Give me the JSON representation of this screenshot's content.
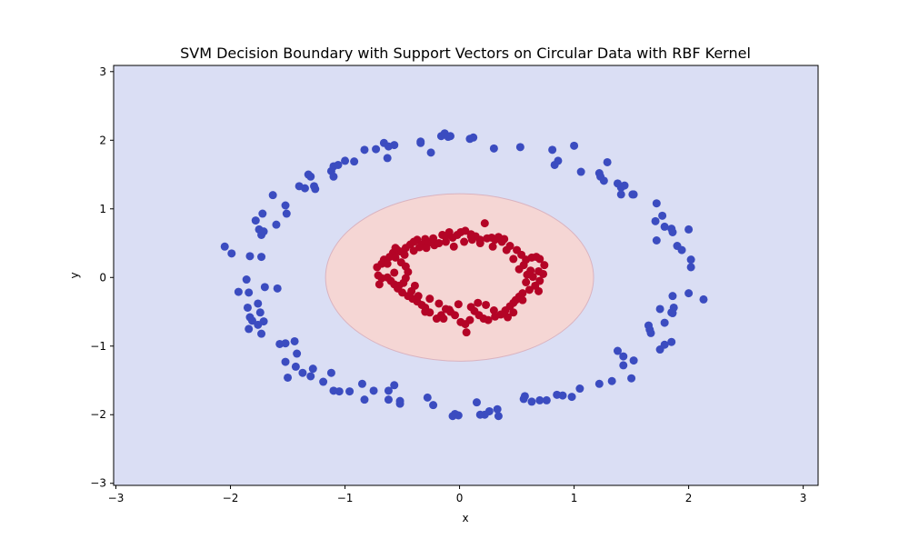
{
  "chart_data": {
    "type": "scatter",
    "title": "SVM Decision Boundary with Support Vectors on Circular Data with RBF Kernel",
    "xlabel": "x",
    "ylabel": "y",
    "xlim": [
      -3.02,
      3.13
    ],
    "ylim": [
      -3.03,
      3.09
    ],
    "xticks": [
      -3,
      -2,
      -1,
      0,
      1,
      2,
      3
    ],
    "xtick_labels": [
      "−3",
      "−2",
      "−1",
      "0",
      "1",
      "2",
      "3"
    ],
    "yticks": [
      -3,
      -2,
      -1,
      0,
      1,
      2,
      3
    ],
    "ytick_labels": [
      "−3",
      "−2",
      "−1",
      "0",
      "1",
      "2",
      "3"
    ],
    "grid": false,
    "decision_region": {
      "outer_color": "#dadef4",
      "inner_color": "#f5d6d4",
      "inner_center": [
        0.0,
        0.0
      ],
      "inner_radii": [
        1.17,
        1.22
      ]
    },
    "series": [
      {
        "color": "#3b4cc0",
        "points": [
          [
            -2.05,
            0.45
          ],
          [
            -1.99,
            0.35
          ],
          [
            -1.83,
            0.31
          ],
          [
            -1.73,
            0.3
          ],
          [
            -1.78,
            0.83
          ],
          [
            -1.72,
            0.93
          ],
          [
            -1.75,
            0.7
          ],
          [
            -1.73,
            0.62
          ],
          [
            -1.71,
            0.67
          ],
          [
            -1.63,
            1.2
          ],
          [
            -1.6,
            0.77
          ],
          [
            -1.52,
            1.05
          ],
          [
            -1.51,
            0.93
          ],
          [
            -1.4,
            1.33
          ],
          [
            -1.35,
            1.3
          ],
          [
            -1.32,
            1.5
          ],
          [
            -1.3,
            1.47
          ],
          [
            -1.27,
            1.33
          ],
          [
            -1.26,
            1.29
          ],
          [
            -1.12,
            1.55
          ],
          [
            -1.1,
            1.62
          ],
          [
            -1.1,
            1.47
          ],
          [
            -1.06,
            1.64
          ],
          [
            -1.0,
            1.7
          ],
          [
            -0.92,
            1.69
          ],
          [
            -0.83,
            1.86
          ],
          [
            -0.73,
            1.87
          ],
          [
            -0.66,
            1.96
          ],
          [
            -0.62,
            1.91
          ],
          [
            -0.63,
            1.74
          ],
          [
            -0.57,
            1.93
          ],
          [
            -0.34,
            1.98
          ],
          [
            -0.34,
            1.96
          ],
          [
            -0.25,
            1.82
          ],
          [
            -0.16,
            2.06
          ],
          [
            -0.13,
            2.1
          ],
          [
            -0.1,
            2.05
          ],
          [
            -0.08,
            2.06
          ],
          [
            0.09,
            2.02
          ],
          [
            0.12,
            2.04
          ],
          [
            0.3,
            1.88
          ],
          [
            0.53,
            1.9
          ],
          [
            0.81,
            1.86
          ],
          [
            0.83,
            1.64
          ],
          [
            0.86,
            1.7
          ],
          [
            1.0,
            1.92
          ],
          [
            1.06,
            1.54
          ],
          [
            1.22,
            1.52
          ],
          [
            1.23,
            1.47
          ],
          [
            1.26,
            1.41
          ],
          [
            1.29,
            1.68
          ],
          [
            1.38,
            1.37
          ],
          [
            1.41,
            1.31
          ],
          [
            1.41,
            1.21
          ],
          [
            1.44,
            1.34
          ],
          [
            1.51,
            1.21
          ],
          [
            1.52,
            1.21
          ],
          [
            1.72,
            1.08
          ],
          [
            1.71,
            0.82
          ],
          [
            1.72,
            0.54
          ],
          [
            1.77,
            0.9
          ],
          [
            1.79,
            0.74
          ],
          [
            1.85,
            0.71
          ],
          [
            1.86,
            0.66
          ],
          [
            1.9,
            0.46
          ],
          [
            1.94,
            0.4
          ],
          [
            2.0,
            0.7
          ],
          [
            2.02,
            0.26
          ],
          [
            2.02,
            0.15
          ],
          [
            2.13,
            -0.32
          ],
          [
            2.0,
            -0.23
          ],
          [
            1.86,
            -0.27
          ],
          [
            1.87,
            -0.44
          ],
          [
            1.85,
            -0.51
          ],
          [
            1.86,
            -0.52
          ],
          [
            1.79,
            -0.66
          ],
          [
            1.75,
            -0.46
          ],
          [
            1.65,
            -0.7
          ],
          [
            1.67,
            -0.81
          ],
          [
            1.66,
            -0.76
          ],
          [
            1.75,
            -1.05
          ],
          [
            1.79,
            -0.98
          ],
          [
            1.85,
            -0.94
          ],
          [
            1.38,
            -1.07
          ],
          [
            1.43,
            -1.15
          ],
          [
            1.43,
            -1.28
          ],
          [
            1.52,
            -1.21
          ],
          [
            1.5,
            -1.47
          ],
          [
            1.33,
            -1.51
          ],
          [
            1.22,
            -1.55
          ],
          [
            1.05,
            -1.62
          ],
          [
            0.98,
            -1.74
          ],
          [
            0.9,
            -1.72
          ],
          [
            0.85,
            -1.71
          ],
          [
            0.76,
            -1.79
          ],
          [
            0.7,
            -1.79
          ],
          [
            0.63,
            -1.81
          ],
          [
            0.56,
            -1.77
          ],
          [
            0.57,
            -1.73
          ],
          [
            0.33,
            -1.92
          ],
          [
            0.26,
            -1.95
          ],
          [
            0.34,
            -2.02
          ],
          [
            0.22,
            -2.0
          ],
          [
            0.18,
            -2.0
          ],
          [
            0.15,
            -1.82
          ],
          [
            -0.01,
            -2.01
          ],
          [
            -0.04,
            -1.99
          ],
          [
            -0.06,
            -2.02
          ],
          [
            -0.23,
            -1.86
          ],
          [
            -0.28,
            -1.75
          ],
          [
            -0.52,
            -1.8
          ],
          [
            -0.52,
            -1.84
          ],
          [
            -0.62,
            -1.78
          ],
          [
            -0.62,
            -1.65
          ],
          [
            -0.57,
            -1.57
          ],
          [
            -0.75,
            -1.65
          ],
          [
            -0.83,
            -1.78
          ],
          [
            -0.85,
            -1.55
          ],
          [
            -0.96,
            -1.66
          ],
          [
            -1.05,
            -1.66
          ],
          [
            -1.12,
            -1.39
          ],
          [
            -1.1,
            -1.65
          ],
          [
            -1.19,
            -1.52
          ],
          [
            -1.28,
            -1.33
          ],
          [
            -1.3,
            -1.44
          ],
          [
            -1.43,
            -1.3
          ],
          [
            -1.37,
            -1.39
          ],
          [
            -1.42,
            -1.11
          ],
          [
            -1.44,
            -0.93
          ],
          [
            -1.52,
            -0.96
          ],
          [
            -1.57,
            -0.97
          ],
          [
            -1.52,
            -1.23
          ],
          [
            -1.5,
            -1.46
          ],
          [
            -1.71,
            -0.64
          ],
          [
            -1.73,
            -0.82
          ],
          [
            -1.74,
            -0.51
          ],
          [
            -1.76,
            -0.38
          ],
          [
            -1.76,
            -0.69
          ],
          [
            -1.81,
            -0.63
          ],
          [
            -1.83,
            -0.58
          ],
          [
            -1.84,
            -0.75
          ],
          [
            -1.85,
            -0.44
          ],
          [
            -1.86,
            -0.03
          ],
          [
            -1.84,
            -0.22
          ],
          [
            -1.93,
            -0.21
          ],
          [
            -1.7,
            -0.14
          ],
          [
            -1.59,
            -0.16
          ]
        ]
      },
      {
        "color": "#b40426",
        "points": [
          [
            -0.58,
            0.36
          ],
          [
            -0.55,
            0.41
          ],
          [
            -0.52,
            0.38
          ],
          [
            -0.47,
            0.43
          ],
          [
            -0.43,
            0.48
          ],
          [
            -0.4,
            0.52
          ],
          [
            -0.37,
            0.55
          ],
          [
            -0.33,
            0.48
          ],
          [
            -0.3,
            0.56
          ],
          [
            -0.27,
            0.51
          ],
          [
            -0.22,
            0.47
          ],
          [
            -0.18,
            0.5
          ],
          [
            -0.15,
            0.62
          ],
          [
            -0.12,
            0.6
          ],
          [
            -0.09,
            0.66
          ],
          [
            -0.06,
            0.58
          ],
          [
            -0.02,
            0.62
          ],
          [
            0.01,
            0.66
          ],
          [
            0.05,
            0.68
          ],
          [
            0.1,
            0.63
          ],
          [
            0.14,
            0.6
          ],
          [
            0.18,
            0.55
          ],
          [
            0.22,
            0.79
          ],
          [
            0.24,
            0.57
          ],
          [
            0.28,
            0.58
          ],
          [
            0.31,
            0.55
          ],
          [
            0.34,
            0.59
          ],
          [
            0.37,
            0.52
          ],
          [
            0.44,
            0.46
          ],
          [
            0.5,
            0.4
          ],
          [
            0.54,
            0.33
          ],
          [
            0.58,
            0.26
          ],
          [
            0.63,
            0.29
          ],
          [
            0.67,
            0.3
          ],
          [
            0.7,
            0.27
          ],
          [
            0.74,
            0.18
          ],
          [
            0.62,
            0.1
          ],
          [
            0.69,
            0.09
          ],
          [
            0.73,
            0.05
          ],
          [
            0.64,
            0.01
          ],
          [
            0.7,
            -0.05
          ],
          [
            0.66,
            -0.12
          ],
          [
            0.61,
            -0.18
          ],
          [
            0.55,
            -0.23
          ],
          [
            0.52,
            -0.28
          ],
          [
            0.49,
            -0.33
          ],
          [
            0.47,
            -0.37
          ],
          [
            0.44,
            -0.42
          ],
          [
            0.4,
            -0.48
          ],
          [
            0.36,
            -0.54
          ],
          [
            0.31,
            -0.57
          ],
          [
            0.25,
            -0.62
          ],
          [
            0.21,
            -0.6
          ],
          [
            0.17,
            -0.55
          ],
          [
            0.13,
            -0.49
          ],
          [
            0.1,
            -0.43
          ],
          [
            0.09,
            -0.62
          ],
          [
            0.05,
            -0.68
          ],
          [
            0.06,
            -0.8
          ],
          [
            0.01,
            -0.65
          ],
          [
            -0.04,
            -0.55
          ],
          [
            -0.08,
            -0.5
          ],
          [
            -0.12,
            -0.46
          ],
          [
            -0.16,
            -0.55
          ],
          [
            -0.2,
            -0.6
          ],
          [
            -0.26,
            -0.51
          ],
          [
            -0.3,
            -0.44
          ],
          [
            -0.33,
            -0.4
          ],
          [
            -0.37,
            -0.35
          ],
          [
            -0.41,
            -0.31
          ],
          [
            -0.45,
            -0.27
          ],
          [
            -0.5,
            -0.22
          ],
          [
            -0.54,
            -0.16
          ],
          [
            -0.57,
            -0.1
          ],
          [
            -0.6,
            -0.05
          ],
          [
            -0.63,
            0.0
          ],
          [
            -0.68,
            -0.01
          ],
          [
            -0.71,
            0.03
          ],
          [
            -0.72,
            0.15
          ],
          [
            -0.68,
            0.2
          ],
          [
            -0.66,
            0.26
          ],
          [
            -0.61,
            0.3
          ],
          [
            -0.56,
            0.29
          ],
          [
            -0.51,
            0.22
          ],
          [
            -0.47,
            0.16
          ],
          [
            -0.45,
            0.08
          ],
          [
            -0.47,
            -0.01
          ],
          [
            -0.49,
            -0.08
          ],
          [
            -0.53,
            -0.12
          ],
          [
            -0.57,
            0.07
          ],
          [
            -0.4,
            0.39
          ],
          [
            -0.35,
            0.44
          ],
          [
            -0.23,
            0.57
          ],
          [
            -0.12,
            0.52
          ],
          [
            -0.05,
            0.45
          ],
          [
            0.04,
            0.52
          ],
          [
            0.11,
            0.55
          ],
          [
            0.18,
            0.5
          ],
          [
            0.29,
            0.45
          ],
          [
            0.41,
            0.4
          ],
          [
            0.47,
            0.27
          ],
          [
            0.56,
            0.18
          ],
          [
            0.59,
            0.04
          ],
          [
            0.58,
            -0.07
          ],
          [
            0.55,
            -0.33
          ],
          [
            0.47,
            -0.51
          ],
          [
            0.3,
            -0.48
          ],
          [
            0.23,
            -0.4
          ],
          [
            0.16,
            -0.37
          ],
          [
            -0.01,
            -0.39
          ],
          [
            -0.09,
            -0.47
          ],
          [
            -0.18,
            -0.38
          ],
          [
            -0.26,
            -0.31
          ],
          [
            -0.36,
            -0.27
          ],
          [
            -0.42,
            -0.2
          ],
          [
            -0.39,
            -0.12
          ],
          [
            -0.56,
            0.43
          ],
          [
            -0.48,
            0.33
          ],
          [
            -0.29,
            0.43
          ],
          [
            0.1,
            0.6
          ],
          [
            0.39,
            0.56
          ],
          [
            0.52,
            0.12
          ],
          [
            0.69,
            -0.2
          ],
          [
            0.42,
            -0.58
          ],
          [
            -0.14,
            -0.6
          ],
          [
            -0.3,
            -0.5
          ],
          [
            -0.63,
            0.2
          ],
          [
            -0.7,
            -0.1
          ]
        ]
      }
    ]
  }
}
